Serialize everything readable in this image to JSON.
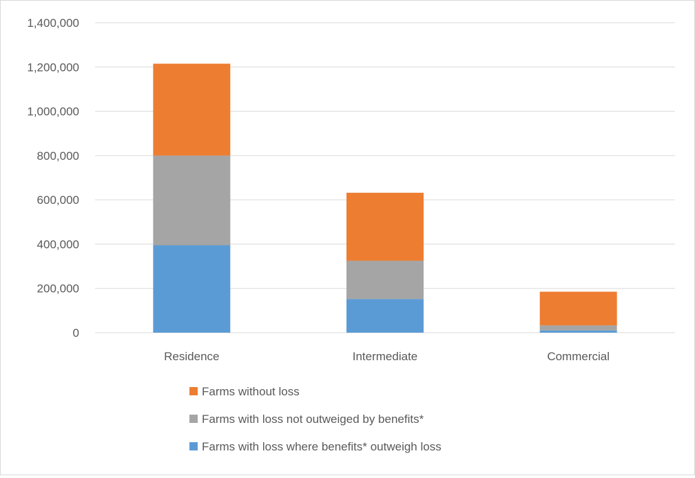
{
  "chart_data": {
    "type": "bar",
    "stacked": true,
    "title": "",
    "xlabel": "",
    "ylabel": "",
    "categories": [
      "Residence",
      "Intermediate",
      "Commercial"
    ],
    "series": [
      {
        "name": "Farms with loss where benefits* outweigh loss",
        "color": "#5b9bd5",
        "values": [
          395000,
          152000,
          10000
        ]
      },
      {
        "name": "Farms with loss not outweiged by benefits*",
        "color": "#a5a5a5",
        "values": [
          405000,
          173000,
          23000
        ]
      },
      {
        "name": "Farms without loss",
        "color": "#ed7d31",
        "values": [
          415000,
          307000,
          152000
        ]
      }
    ],
    "ylim": [
      0,
      1400000
    ],
    "yticks": [
      0,
      200000,
      400000,
      600000,
      800000,
      1000000,
      1200000,
      1400000
    ],
    "ytick_labels": [
      "0",
      "200,000",
      "400,000",
      "600,000",
      "800,000",
      "1,000,000",
      "1,200,000",
      "1,400,000"
    ],
    "grid": true,
    "legend_position": "bottom",
    "legend_order": [
      "Farms without loss",
      "Farms with loss not outweiged by benefits*",
      "Farms with loss where benefits* outweigh loss"
    ]
  }
}
